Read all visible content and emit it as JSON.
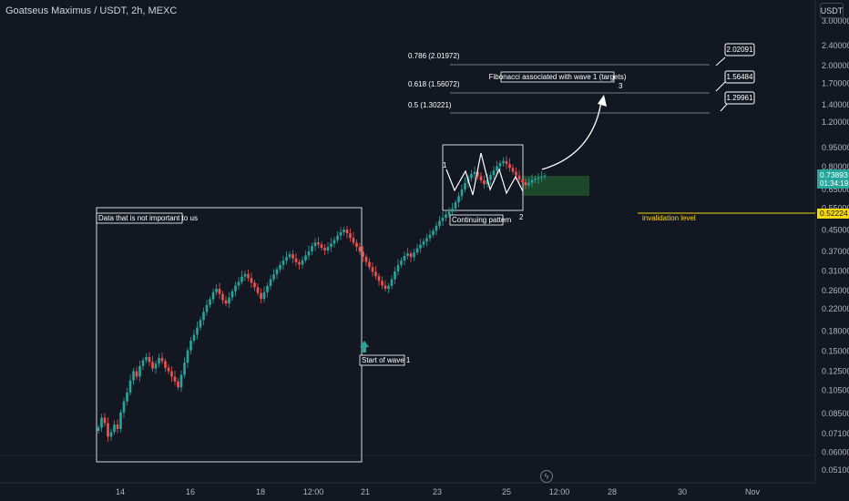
{
  "header": {
    "symbol_title": "Goatseus Maximus / USDT, 2h, MEXC",
    "currency_button": "USDT"
  },
  "colors": {
    "background": "#131722",
    "up": "#26a69a",
    "down": "#ef5350",
    "invalidation": "#f5d90a",
    "target_zone": "#1e4d2b"
  },
  "icons": {
    "replay": "lightning-icon"
  },
  "price_axis": {
    "ticks": [
      "3.00000",
      "2.40000",
      "2.00000",
      "1.70000",
      "1.40000",
      "1.20000",
      "0.95000",
      "0.80000",
      "0.65000",
      "0.55000",
      "0.45000",
      "0.37000",
      "0.31000",
      "0.26000",
      "0.22000",
      "0.18000",
      "0.15000",
      "0.12500",
      "0.10500",
      "0.08500",
      "0.07100",
      "0.06000",
      "0.05100"
    ],
    "last_price": "0.73893",
    "countdown": "01:34:19",
    "invalidation_price": "0.52224"
  },
  "time_axis": {
    "ticks": [
      "14",
      "16",
      "18",
      "12:00",
      "21",
      "23",
      "25",
      "12:00",
      "28",
      "30",
      "Nov"
    ]
  },
  "annotations": {
    "box_unimportant": "Data that is not important to us",
    "start_wave1": "Start of wave 1",
    "continuing_pattern": "Continuing pattern",
    "fib_title": "Fibonacci associated with wave 1 (targets)",
    "fib_0786": "0.786 (2.01972)",
    "fib_0618": "0.618 (1.56072)",
    "fib_05": "0.5 (1.30221)",
    "callout_1": "2.02091",
    "callout_2": "1.56484",
    "callout_3": "1.29961",
    "invalidation_label": "invalidation level",
    "wave_1": "1",
    "wave_2": "2",
    "wave_3": "3"
  },
  "chart_data": {
    "type": "candlestick",
    "price_scale": "log",
    "candles_close": [
      0.075,
      0.082,
      0.078,
      0.069,
      0.072,
      0.077,
      0.074,
      0.086,
      0.095,
      0.103,
      0.115,
      0.125,
      0.119,
      0.131,
      0.138,
      0.142,
      0.136,
      0.128,
      0.134,
      0.141,
      0.137,
      0.129,
      0.125,
      0.119,
      0.114,
      0.108,
      0.121,
      0.135,
      0.151,
      0.165,
      0.174,
      0.186,
      0.199,
      0.214,
      0.228,
      0.24,
      0.256,
      0.264,
      0.252,
      0.238,
      0.231,
      0.244,
      0.258,
      0.272,
      0.281,
      0.295,
      0.302,
      0.291,
      0.279,
      0.268,
      0.254,
      0.241,
      0.256,
      0.271,
      0.288,
      0.301,
      0.315,
      0.328,
      0.341,
      0.352,
      0.361,
      0.348,
      0.336,
      0.329,
      0.342,
      0.357,
      0.371,
      0.389,
      0.402,
      0.395,
      0.383,
      0.374,
      0.386,
      0.398,
      0.411,
      0.428,
      0.441,
      0.452,
      0.437,
      0.419,
      0.401,
      0.386,
      0.37,
      0.353,
      0.337,
      0.321,
      0.308,
      0.296,
      0.284,
      0.272,
      0.264,
      0.271,
      0.288,
      0.309,
      0.328,
      0.341,
      0.356,
      0.364,
      0.352,
      0.367,
      0.381,
      0.394,
      0.406,
      0.418,
      0.431,
      0.447,
      0.468,
      0.489,
      0.503,
      0.518,
      0.532,
      0.547,
      0.579,
      0.612,
      0.651,
      0.689,
      0.721,
      0.748,
      0.762,
      0.735,
      0.706,
      0.682,
      0.709,
      0.741,
      0.772,
      0.803,
      0.826,
      0.842,
      0.819,
      0.791,
      0.764,
      0.738,
      0.712,
      0.694,
      0.676,
      0.691,
      0.708,
      0.716,
      0.724,
      0.731,
      0.738
    ],
    "levels": [
      {
        "label": "0.786",
        "value": 2.01972
      },
      {
        "label": "0.618",
        "value": 1.56072
      },
      {
        "label": "0.5",
        "value": 1.30221
      },
      {
        "label": "invalidation level",
        "value": 0.52224
      }
    ]
  }
}
